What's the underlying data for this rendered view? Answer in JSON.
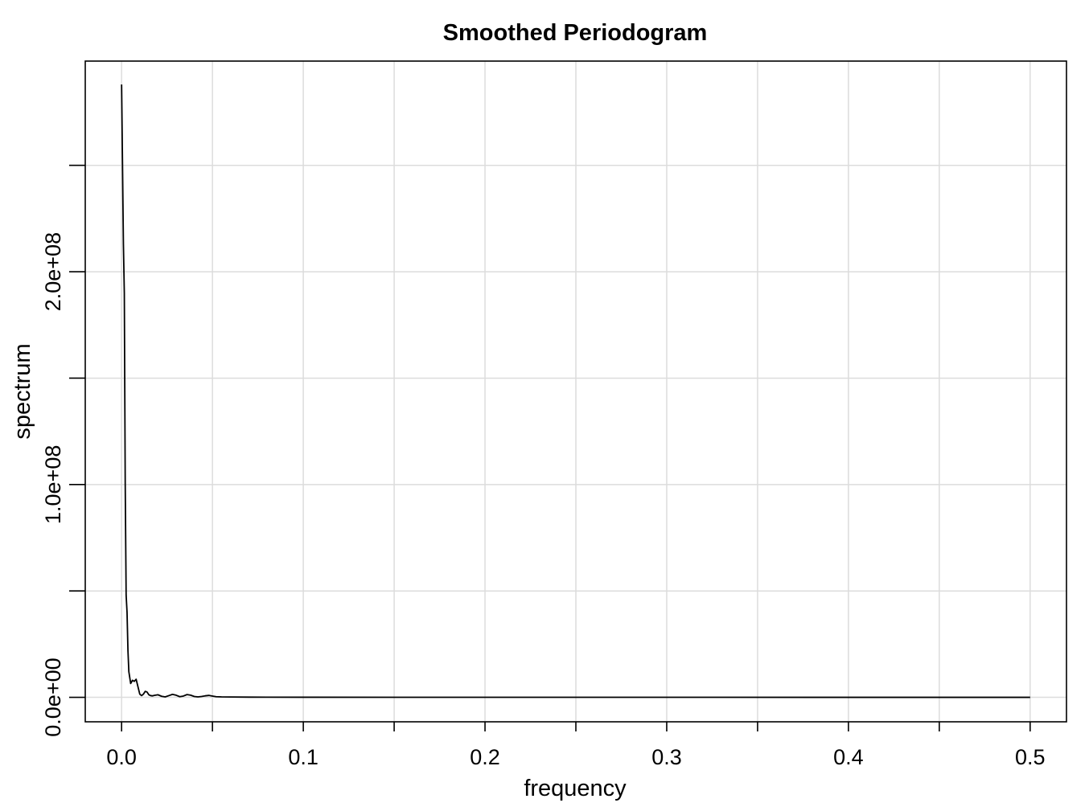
{
  "chart_data": {
    "type": "line",
    "title": "Smoothed Periodogram",
    "xlabel": "frequency",
    "ylabel": "spectrum",
    "xlim": [
      -0.02,
      0.52
    ],
    "ylim": [
      -11500000,
      299000000
    ],
    "x_ticks": [
      0.0,
      0.1,
      0.2,
      0.3,
      0.4,
      0.5
    ],
    "x_tick_labels": [
      "0.0",
      "0.1",
      "0.2",
      "0.3",
      "0.4",
      "0.5"
    ],
    "x_minor_ticks": [
      0.05,
      0.15,
      0.25,
      0.35,
      0.45
    ],
    "y_ticks": [
      0,
      50000000,
      100000000,
      150000000,
      200000000,
      250000000
    ],
    "y_tick_labels": [
      "0.0e+00",
      "",
      "1.0e+08",
      "",
      "2.0e+08",
      ""
    ],
    "grid": true,
    "series": [
      {
        "x": [
          0.0,
          0.001,
          0.0015,
          0.002,
          0.0025,
          0.003,
          0.0035,
          0.004,
          0.005,
          0.006,
          0.007,
          0.008,
          0.009,
          0.01,
          0.011,
          0.012,
          0.013,
          0.014,
          0.015,
          0.016,
          0.017,
          0.018,
          0.02,
          0.022,
          0.024,
          0.026,
          0.028,
          0.03,
          0.032,
          0.034,
          0.036,
          0.038,
          0.04,
          0.042,
          0.044,
          0.046,
          0.048,
          0.05,
          0.052,
          0.055,
          0.06,
          0.07,
          0.08,
          0.1,
          0.15,
          0.2,
          0.3,
          0.4,
          0.5
        ],
        "y": [
          288000000,
          213000000,
          190000000,
          100000000,
          48000000,
          40000000,
          22000000,
          12000000,
          6500000,
          8000000,
          7500000,
          8500000,
          5000000,
          1500000,
          800000,
          1500000,
          2800000,
          2500000,
          1200000,
          800000,
          700000,
          900000,
          1200000,
          500000,
          200000,
          800000,
          1400000,
          1000000,
          300000,
          600000,
          1300000,
          1000000,
          400000,
          200000,
          400000,
          700000,
          900000,
          600000,
          300000,
          200000,
          150000,
          100000,
          80000,
          50000,
          30000,
          20000,
          10000,
          5000,
          3000
        ]
      }
    ]
  }
}
